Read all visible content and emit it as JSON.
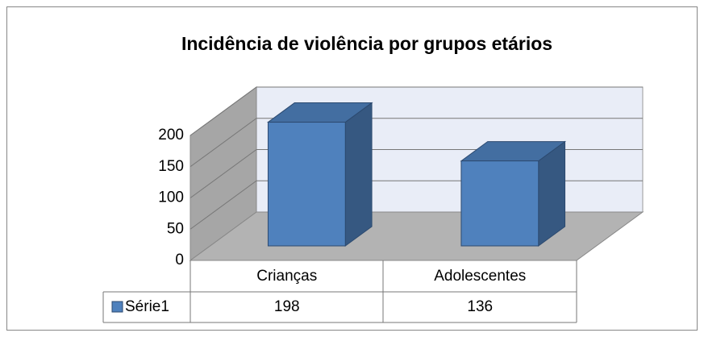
{
  "chart_data": {
    "type": "bar",
    "title": "Incidência de violência por grupos etários",
    "categories": [
      "Crianças",
      "Adolescentes"
    ],
    "series": [
      {
        "name": "Série1",
        "color": "#4f81bd",
        "values": [
          198,
          136
        ]
      }
    ],
    "ylim": [
      0,
      200
    ],
    "yticks": [
      0,
      50,
      100,
      150,
      200
    ],
    "grid": true
  }
}
